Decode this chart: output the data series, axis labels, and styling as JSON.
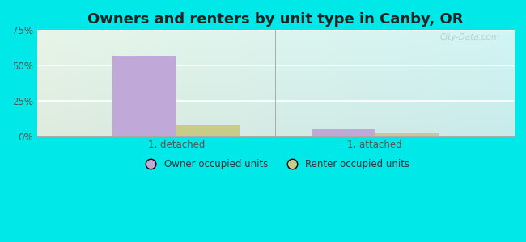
{
  "title": "Owners and renters by unit type in Canby, OR",
  "categories": [
    "1, detached",
    "1, attached"
  ],
  "owner_values": [
    57.0,
    5.0
  ],
  "renter_values": [
    8.0,
    2.0
  ],
  "owner_color": "#c0a8d8",
  "renter_color": "#c8cc88",
  "ylim": [
    0,
    75
  ],
  "yticks": [
    0,
    25,
    50,
    75
  ],
  "ytick_labels": [
    "0%",
    "25%",
    "50%",
    "75%"
  ],
  "bar_width": 0.32,
  "title_fontsize": 13,
  "legend_labels": [
    "Owner occupied units",
    "Renter occupied units"
  ],
  "outer_bg": "#00e8e8",
  "watermark": "City-Data.com"
}
